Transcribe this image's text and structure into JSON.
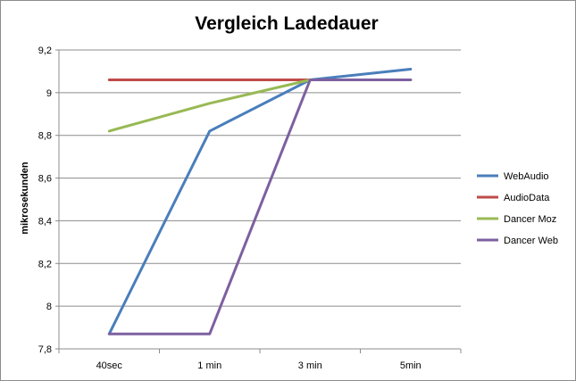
{
  "chart_data": {
    "type": "line",
    "title": "Vergleich Ladedauer",
    "xlabel": "",
    "ylabel": "mikrosekunden",
    "categories": [
      "40sec",
      "1 min",
      "3 min",
      "5min"
    ],
    "ylim": [
      7.8,
      9.2
    ],
    "yticks": [
      7.8,
      8,
      8.2,
      8.4,
      8.6,
      8.8,
      9,
      9.2
    ],
    "ytick_labels": [
      "7,8",
      "8",
      "8,2",
      "8,4",
      "8,6",
      "8,8",
      "9",
      "9,2"
    ],
    "grid": true,
    "legend_position": "right",
    "series": [
      {
        "name": "WebAudio",
        "color": "#4a7ebb",
        "values": [
          7.87,
          8.82,
          9.06,
          9.11
        ]
      },
      {
        "name": "AudioData",
        "color": "#be4b48",
        "values": [
          9.06,
          9.06,
          9.06,
          9.06
        ]
      },
      {
        "name": "Dancer Moz",
        "color": "#98b954",
        "values": [
          8.82,
          8.95,
          9.06,
          9.06
        ]
      },
      {
        "name": "Dancer Web",
        "color": "#7d60a0",
        "values": [
          7.87,
          7.87,
          9.06,
          9.06
        ]
      }
    ]
  }
}
